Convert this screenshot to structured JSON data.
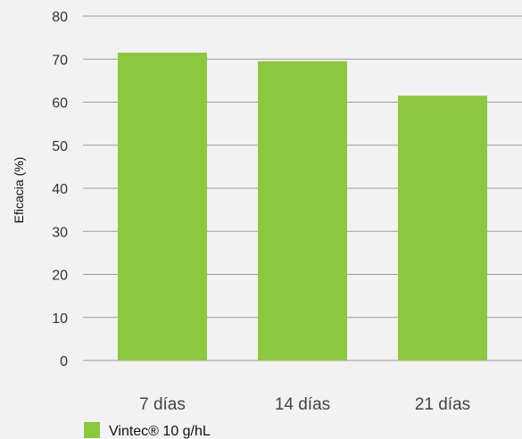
{
  "chart_data": {
    "type": "bar",
    "categories": [
      "7 días",
      "14 días",
      "21 días"
    ],
    "series": [
      {
        "name": "Vintec® 10 g/hL",
        "values": [
          71.5,
          69.5,
          61.5
        ]
      }
    ],
    "ylabel": "Eficacia (%)",
    "xlabel": "",
    "ylim": [
      0,
      80
    ],
    "yticks": [
      0,
      10,
      20,
      30,
      40,
      50,
      60,
      70,
      80
    ],
    "grid": true,
    "legend": "bottom-left",
    "colors": {
      "bar": "#8dc63f",
      "grid": "#9a9a9a",
      "background": "#f2f2f2"
    }
  }
}
